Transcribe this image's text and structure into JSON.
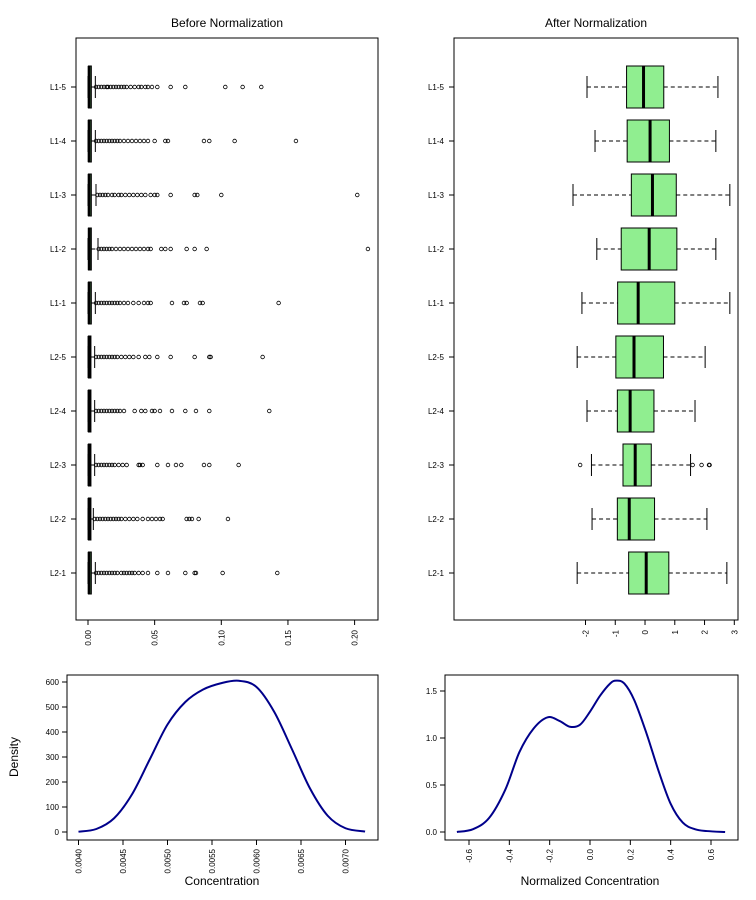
{
  "figure": {
    "ylabel_density": "Density"
  },
  "chart_data": [
    {
      "type": "boxplot",
      "orientation": "horizontal",
      "title": "Before Normalization",
      "categories": [
        "L1-5",
        "L1-4",
        "L1-3",
        "L1-2",
        "L1-1",
        "L2-5",
        "L2-4",
        "L2-3",
        "L2-2",
        "L2-1"
      ],
      "xlim": [
        -0.01,
        0.21
      ],
      "xticks": [
        "0.00",
        "0.05",
        "0.10",
        "0.15",
        "0.20"
      ],
      "xtick_values": [
        0.0,
        0.05,
        0.1,
        0.15,
        0.2
      ],
      "box_color": "#90ee90",
      "boxes": [
        {
          "q1": 0.0003,
          "median": 0.0009,
          "q3": 0.0025,
          "whisker_low": 0.0,
          "whisker_high": 0.0055,
          "outliers": [
            0.006,
            0.008,
            0.01,
            0.012,
            0.014,
            0.015,
            0.017,
            0.019,
            0.021,
            0.023,
            0.025,
            0.027,
            0.029,
            0.032,
            0.035,
            0.038,
            0.04,
            0.043,
            0.045,
            0.048,
            0.052,
            0.062,
            0.073,
            0.103,
            0.116,
            0.13
          ]
        },
        {
          "q1": 0.0003,
          "median": 0.0009,
          "q3": 0.0025,
          "whisker_low": 0.0,
          "whisker_high": 0.0055,
          "outliers": [
            0.006,
            0.008,
            0.01,
            0.012,
            0.014,
            0.016,
            0.018,
            0.02,
            0.022,
            0.024,
            0.027,
            0.03,
            0.033,
            0.036,
            0.039,
            0.042,
            0.045,
            0.05,
            0.058,
            0.06,
            0.087,
            0.091,
            0.11,
            0.156
          ]
        },
        {
          "q1": 0.0003,
          "median": 0.0009,
          "q3": 0.0025,
          "whisker_low": 0.0,
          "whisker_high": 0.006,
          "outliers": [
            0.007,
            0.009,
            0.011,
            0.013,
            0.015,
            0.018,
            0.02,
            0.023,
            0.025,
            0.028,
            0.031,
            0.034,
            0.037,
            0.04,
            0.043,
            0.047,
            0.05,
            0.052,
            0.062,
            0.08,
            0.082,
            0.1,
            0.202
          ]
        },
        {
          "q1": 0.0003,
          "median": 0.001,
          "q3": 0.0025,
          "whisker_low": 0.0,
          "whisker_high": 0.0075,
          "outliers": [
            0.008,
            0.01,
            0.012,
            0.014,
            0.016,
            0.018,
            0.021,
            0.024,
            0.027,
            0.03,
            0.033,
            0.036,
            0.039,
            0.042,
            0.045,
            0.047,
            0.055,
            0.058,
            0.062,
            0.074,
            0.08,
            0.089,
            0.21
          ]
        },
        {
          "q1": 0.0003,
          "median": 0.0009,
          "q3": 0.0025,
          "whisker_low": 0.0,
          "whisker_high": 0.0055,
          "outliers": [
            0.006,
            0.008,
            0.01,
            0.012,
            0.014,
            0.016,
            0.018,
            0.02,
            0.022,
            0.024,
            0.027,
            0.03,
            0.034,
            0.038,
            0.042,
            0.045,
            0.047,
            0.063,
            0.072,
            0.074,
            0.084,
            0.086,
            0.143
          ]
        },
        {
          "q1": 0.0003,
          "median": 0.0008,
          "q3": 0.0022,
          "whisker_low": 0.0,
          "whisker_high": 0.005,
          "outliers": [
            0.006,
            0.008,
            0.01,
            0.012,
            0.014,
            0.016,
            0.018,
            0.02,
            0.022,
            0.025,
            0.028,
            0.031,
            0.034,
            0.038,
            0.043,
            0.046,
            0.052,
            0.062,
            0.08,
            0.091,
            0.092,
            0.131
          ]
        },
        {
          "q1": 0.0003,
          "median": 0.0008,
          "q3": 0.0022,
          "whisker_low": 0.0,
          "whisker_high": 0.005,
          "outliers": [
            0.006,
            0.008,
            0.01,
            0.012,
            0.014,
            0.016,
            0.018,
            0.02,
            0.022,
            0.024,
            0.027,
            0.035,
            0.04,
            0.043,
            0.048,
            0.05,
            0.054,
            0.063,
            0.073,
            0.081,
            0.091,
            0.136
          ]
        },
        {
          "q1": 0.0003,
          "median": 0.0008,
          "q3": 0.0022,
          "whisker_low": 0.0,
          "whisker_high": 0.005,
          "outliers": [
            0.006,
            0.008,
            0.01,
            0.012,
            0.014,
            0.016,
            0.018,
            0.02,
            0.023,
            0.026,
            0.029,
            0.038,
            0.039,
            0.041,
            0.052,
            0.06,
            0.066,
            0.07,
            0.087,
            0.091,
            0.113
          ]
        },
        {
          "q1": 0.0003,
          "median": 0.0008,
          "q3": 0.0022,
          "whisker_low": 0.0,
          "whisker_high": 0.004,
          "outliers": [
            0.005,
            0.007,
            0.009,
            0.011,
            0.013,
            0.015,
            0.017,
            0.019,
            0.021,
            0.023,
            0.025,
            0.028,
            0.031,
            0.034,
            0.037,
            0.041,
            0.045,
            0.048,
            0.051,
            0.054,
            0.056,
            0.074,
            0.076,
            0.078,
            0.083,
            0.105
          ]
        },
        {
          "q1": 0.0003,
          "median": 0.0009,
          "q3": 0.0025,
          "whisker_low": 0.0,
          "whisker_high": 0.0055,
          "outliers": [
            0.006,
            0.008,
            0.01,
            0.012,
            0.014,
            0.016,
            0.018,
            0.02,
            0.022,
            0.025,
            0.027,
            0.029,
            0.031,
            0.033,
            0.035,
            0.038,
            0.041,
            0.045,
            0.052,
            0.06,
            0.073,
            0.08,
            0.081,
            0.101,
            0.142
          ]
        }
      ]
    },
    {
      "type": "boxplot",
      "orientation": "horizontal",
      "title": "After Normalization",
      "categories": [
        "L1-5",
        "L1-4",
        "L1-3",
        "L1-2",
        "L1-1",
        "L2-5",
        "L2-4",
        "L2-3",
        "L2-2",
        "L2-1"
      ],
      "xlim": [
        -2.65,
        3.0
      ],
      "xticks": [
        "-2",
        "-1",
        "0",
        "1",
        "2",
        "3"
      ],
      "xtick_values": [
        -2,
        -1,
        0,
        1,
        2,
        3
      ],
      "box_color": "#90ee90",
      "boxes": [
        {
          "q1": -0.62,
          "median": -0.05,
          "q3": 0.63,
          "whisker_low": -1.95,
          "whisker_high": 2.45,
          "outliers": []
        },
        {
          "q1": -0.6,
          "median": 0.17,
          "q3": 0.82,
          "whisker_low": -1.68,
          "whisker_high": 2.38,
          "outliers": []
        },
        {
          "q1": -0.46,
          "median": 0.25,
          "q3": 1.05,
          "whisker_low": -2.42,
          "whisker_high": 2.85,
          "outliers": []
        },
        {
          "q1": -0.8,
          "median": 0.14,
          "q3": 1.07,
          "whisker_low": -1.62,
          "whisker_high": 2.38,
          "outliers": []
        },
        {
          "q1": -0.92,
          "median": -0.23,
          "q3": 1.0,
          "whisker_low": -2.12,
          "whisker_high": 2.85,
          "outliers": []
        },
        {
          "q1": -0.98,
          "median": -0.37,
          "q3": 0.62,
          "whisker_low": -2.28,
          "whisker_high": 2.02,
          "outliers": []
        },
        {
          "q1": -0.93,
          "median": -0.5,
          "q3": 0.3,
          "whisker_low": -1.95,
          "whisker_high": 1.68,
          "outliers": []
        },
        {
          "q1": -0.74,
          "median": -0.33,
          "q3": 0.21,
          "whisker_low": -1.8,
          "whisker_high": 1.53,
          "outliers": [
            -2.18,
            1.6,
            1.9,
            2.15,
            2.17
          ]
        },
        {
          "q1": -0.93,
          "median": -0.53,
          "q3": 0.32,
          "whisker_low": -1.78,
          "whisker_high": 2.08,
          "outliers": []
        },
        {
          "q1": -0.55,
          "median": 0.04,
          "q3": 0.8,
          "whisker_low": -2.28,
          "whisker_high": 2.75,
          "outliers": []
        }
      ]
    },
    {
      "type": "line",
      "title": "",
      "xlabel": "Concentration",
      "ylabel": "Density",
      "xlim": [
        0.00395,
        0.00725
      ],
      "ylim": [
        -10,
        630
      ],
      "xticks": [
        "0.0040",
        "0.0045",
        "0.0050",
        "0.0055",
        "0.0060",
        "0.0065",
        "0.0070"
      ],
      "xtick_values": [
        0.004,
        0.0045,
        0.005,
        0.0055,
        0.006,
        0.0065,
        0.007
      ],
      "yticks": [
        "0",
        "100",
        "200",
        "300",
        "400",
        "500",
        "600"
      ],
      "ytick_values": [
        0,
        100,
        200,
        300,
        400,
        500,
        600
      ],
      "line_color": "#00008b",
      "x": [
        0.004,
        0.0042,
        0.0044,
        0.0046,
        0.0048,
        0.005,
        0.0052,
        0.0054,
        0.0056,
        0.0058,
        0.006,
        0.0062,
        0.0064,
        0.0066,
        0.0068,
        0.007,
        0.00722
      ],
      "y": [
        1,
        12,
        55,
        150,
        290,
        430,
        520,
        570,
        595,
        605,
        580,
        480,
        330,
        175,
        65,
        15,
        2
      ]
    },
    {
      "type": "line",
      "title": "",
      "xlabel": "Normalized Concentration",
      "ylabel": "",
      "xlim": [
        -0.7,
        0.72
      ],
      "ylim": [
        -0.03,
        1.7
      ],
      "xticks": [
        "-0.6",
        "-0.4",
        "-0.2",
        "0.0",
        "0.2",
        "0.4",
        "0.6"
      ],
      "xtick_values": [
        -0.6,
        -0.4,
        -0.2,
        0.0,
        0.2,
        0.4,
        0.6
      ],
      "yticks": [
        "0.0",
        "0.5",
        "1.0",
        "1.5"
      ],
      "ytick_values": [
        0.0,
        0.5,
        1.0,
        1.5
      ],
      "line_color": "#00008b",
      "x": [
        -0.66,
        -0.58,
        -0.5,
        -0.42,
        -0.35,
        -0.28,
        -0.21,
        -0.15,
        -0.1,
        -0.05,
        0.0,
        0.05,
        0.1,
        0.13,
        0.17,
        0.22,
        0.28,
        0.34,
        0.4,
        0.46,
        0.52,
        0.58,
        0.67
      ],
      "y": [
        0.0,
        0.03,
        0.15,
        0.45,
        0.85,
        1.1,
        1.22,
        1.18,
        1.12,
        1.14,
        1.28,
        1.45,
        1.58,
        1.61,
        1.58,
        1.4,
        1.05,
        0.65,
        0.3,
        0.1,
        0.03,
        0.01,
        0.0
      ]
    }
  ]
}
